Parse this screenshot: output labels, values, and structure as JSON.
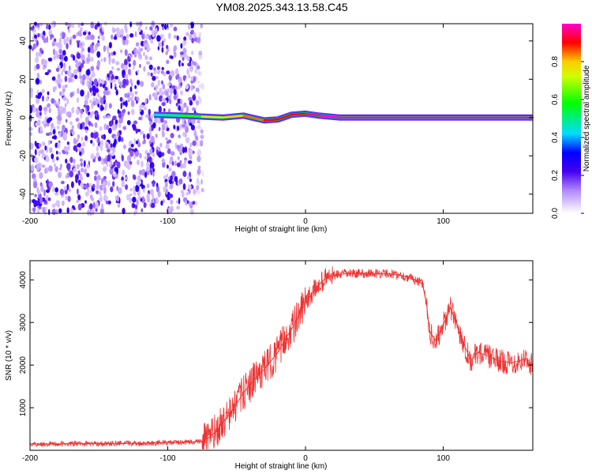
{
  "chart_data": [
    {
      "type": "heatmap",
      "title": "YM08.2025.343.13.58.C45",
      "xlabel": "Height of straight line (km)",
      "ylabel": "Frequency (Hz)",
      "xlim": [
        -200,
        165
      ],
      "ylim": [
        -50,
        49
      ],
      "xticks": [
        -200,
        -100,
        0,
        100
      ],
      "yticks": [
        -40,
        -20,
        0,
        20,
        40
      ],
      "noise_region_x": [
        -200,
        -80
      ],
      "signal_band": [
        {
          "x": -110,
          "freq": 1.5,
          "amp": 0.35
        },
        {
          "x": -90,
          "freq": 1.0,
          "amp": 0.45
        },
        {
          "x": -75,
          "freq": 0.5,
          "amp": 0.6
        },
        {
          "x": -60,
          "freq": 0.0,
          "amp": 0.75
        },
        {
          "x": -45,
          "freq": 1.0,
          "amp": 0.8
        },
        {
          "x": -30,
          "freq": -1.5,
          "amp": 0.85
        },
        {
          "x": -20,
          "freq": -1.0,
          "amp": 0.9
        },
        {
          "x": -10,
          "freq": 1.5,
          "amp": 0.9
        },
        {
          "x": 0,
          "freq": 2.0,
          "amp": 0.9
        },
        {
          "x": 10,
          "freq": 1.0,
          "amp": 0.95
        },
        {
          "x": 25,
          "freq": 0.0,
          "amp": 1.0
        },
        {
          "x": 165,
          "freq": 0.0,
          "amp": 1.0
        }
      ],
      "colorbar": {
        "label": "Normalized spectral amplitude",
        "range": [
          0,
          1
        ],
        "ticks": [
          "0.0",
          "0.2",
          "0.4",
          "0.6",
          "0.8"
        ],
        "tick_values": [
          0,
          0.2,
          0.4,
          0.6,
          0.8
        ],
        "stops": [
          {
            "v": 0.0,
            "color": "#ffffff"
          },
          {
            "v": 0.12,
            "color": "#b288ff"
          },
          {
            "v": 0.22,
            "color": "#4400ee"
          },
          {
            "v": 0.32,
            "color": "#0000ff"
          },
          {
            "v": 0.42,
            "color": "#00ddff"
          },
          {
            "v": 0.58,
            "color": "#00ff00"
          },
          {
            "v": 0.72,
            "color": "#ccff00"
          },
          {
            "v": 0.8,
            "color": "#ffcc00"
          },
          {
            "v": 0.9,
            "color": "#ff0000"
          },
          {
            "v": 1.0,
            "color": "#ff00cc"
          }
        ]
      }
    },
    {
      "type": "line",
      "title": "",
      "xlabel": "Height of straight line (km)",
      "ylabel": "SNR (10 * v/v)",
      "xlim": [
        -200,
        165
      ],
      "ylim": [
        0,
        4450
      ],
      "xticks": [
        -200,
        -100,
        0,
        100
      ],
      "yticks": [
        1000,
        2000,
        3000,
        4000
      ],
      "series": [
        {
          "name": "SNR",
          "color": "#ee3333",
          "x": [
            -200,
            -180,
            -160,
            -140,
            -120,
            -100,
            -85,
            -75,
            -70,
            -65,
            -60,
            -55,
            -50,
            -45,
            -40,
            -35,
            -30,
            -25,
            -20,
            -15,
            -10,
            -5,
            0,
            5,
            10,
            15,
            20,
            30,
            40,
            50,
            60,
            70,
            80,
            85,
            88,
            90,
            95,
            100,
            105,
            110,
            115,
            120,
            125,
            130,
            140,
            150,
            160,
            165
          ],
          "y": [
            150,
            150,
            155,
            160,
            165,
            180,
            190,
            220,
            300,
            450,
            650,
            850,
            1100,
            1350,
            1550,
            1750,
            1900,
            2100,
            2300,
            2600,
            2850,
            3150,
            3450,
            3700,
            3900,
            4050,
            4100,
            4150,
            4150,
            4150,
            4150,
            4100,
            4000,
            3900,
            3400,
            2800,
            2550,
            2950,
            3350,
            2950,
            2500,
            2100,
            2300,
            2250,
            2100,
            2050,
            2150,
            2000
          ]
        }
      ]
    }
  ]
}
